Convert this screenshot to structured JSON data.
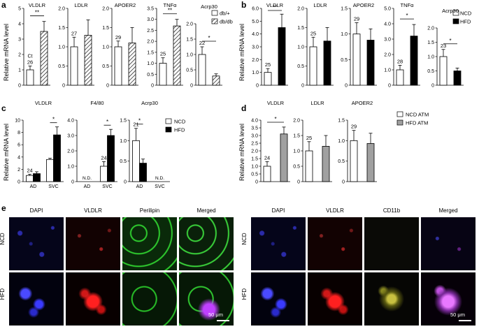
{
  "panels": [
    {
      "letter": "a",
      "ylabel": "Relative mRNA level",
      "legend": [
        "db/+",
        "db/db"
      ]
    },
    {
      "letter": "b",
      "ylabel": "Relative mRNA level",
      "legend": [
        "NCD",
        "HFD"
      ]
    },
    {
      "letter": "c",
      "ylabel": "Relative mRNA level",
      "legend": [
        "NCD",
        "HFD"
      ]
    },
    {
      "letter": "d",
      "ylabel": "Relative mRNA level",
      "legend": [
        "NCD ATM",
        "HFD ATM"
      ]
    },
    {
      "letter": "e"
    }
  ],
  "chart_data": [
    {
      "panel": "a",
      "type": "bar",
      "title": "VLDLR",
      "ylim": [
        0,
        5
      ],
      "yticks": [
        "0",
        "1",
        "2",
        "3",
        "4",
        "5"
      ],
      "categories": [
        "db/+",
        "db/db"
      ],
      "values": [
        1.0,
        3.5
      ],
      "errors": [
        0.25,
        0.65
      ],
      "ct": "26",
      "ct_prefix": "Ct",
      "sig": "**",
      "styles": [
        "open",
        "hatch"
      ]
    },
    {
      "panel": "a",
      "type": "bar",
      "title": "LDLR",
      "ylim": [
        0,
        2.0
      ],
      "yticks": [
        "0",
        "0.5",
        "1.0",
        "1.5",
        "2.0"
      ],
      "categories": [
        "db/+",
        "db/db"
      ],
      "values": [
        1.0,
        1.3
      ],
      "errors": [
        0.25,
        0.4
      ],
      "ct": "27",
      "sig": "",
      "styles": [
        "open",
        "hatch"
      ]
    },
    {
      "panel": "a",
      "type": "bar",
      "title": "APOER2",
      "ylim": [
        0,
        2.0
      ],
      "yticks": [
        "0",
        "0.5",
        "1.0",
        "1.5",
        "2.0"
      ],
      "categories": [
        "db/+",
        "db/db"
      ],
      "values": [
        1.0,
        1.1
      ],
      "errors": [
        0.15,
        0.4
      ],
      "ct": "29",
      "sig": "",
      "styles": [
        "open",
        "hatch"
      ]
    },
    {
      "panel": "a",
      "type": "bar",
      "title": "TNFα",
      "ylim": [
        0,
        3.5
      ],
      "yticks": [
        "0",
        "0.5",
        "1.0",
        "1.5",
        "2.0",
        "2.5",
        "3.0",
        "3.5"
      ],
      "categories": [
        "db/+",
        "db/db"
      ],
      "values": [
        1.0,
        2.7
      ],
      "errors": [
        0.25,
        0.3
      ],
      "ct": "25",
      "sig": "**",
      "styles": [
        "open",
        "hatch"
      ]
    },
    {
      "panel": "a",
      "type": "bar",
      "title": "Acrp30",
      "ylim": [
        0,
        2.0
      ],
      "yticks": [
        "0",
        "0.5",
        "1.0",
        "1.5",
        "2.0"
      ],
      "categories": [
        "db/+",
        "db/db"
      ],
      "values": [
        1.0,
        0.3
      ],
      "errors": [
        0.25,
        0.07
      ],
      "ct": "22",
      "sig": "*",
      "styles": [
        "open",
        "hatch"
      ]
    },
    {
      "panel": "b",
      "type": "bar",
      "title": "VLDLR",
      "ylim": [
        0,
        6.0
      ],
      "yticks": [
        "0",
        "1.0",
        "2.0",
        "3.0",
        "4.0",
        "5.0",
        "6.0"
      ],
      "categories": [
        "NCD",
        "HFD"
      ],
      "values": [
        1.0,
        4.5
      ],
      "errors": [
        0.3,
        1.05
      ],
      "ct": "25",
      "sig": "**",
      "styles": [
        "open",
        "solid"
      ]
    },
    {
      "panel": "b",
      "type": "bar",
      "title": "LDLR",
      "ylim": [
        0,
        2.0
      ],
      "yticks": [
        "0",
        "0.5",
        "1.0",
        "1.5",
        "2.0"
      ],
      "categories": [
        "NCD",
        "HFD"
      ],
      "values": [
        1.0,
        1.15
      ],
      "errors": [
        0.25,
        0.35
      ],
      "ct": "25",
      "sig": "",
      "styles": [
        "open",
        "solid"
      ]
    },
    {
      "panel": "b",
      "type": "bar",
      "title": "APOER2",
      "ylim": [
        0,
        1.5
      ],
      "yticks": [
        "0",
        "0.5",
        "1.0",
        "1.5"
      ],
      "categories": [
        "NCD",
        "HFD"
      ],
      "values": [
        1.0,
        0.88
      ],
      "errors": [
        0.22,
        0.22
      ],
      "ct": "29",
      "sig": "",
      "styles": [
        "open",
        "solid"
      ]
    },
    {
      "panel": "b",
      "type": "bar",
      "title": "TNFα",
      "ylim": [
        0,
        5.0
      ],
      "yticks": [
        "0",
        "1.0",
        "2.0",
        "3.0",
        "4.0",
        "5.0"
      ],
      "categories": [
        "NCD",
        "HFD"
      ],
      "values": [
        1.0,
        3.2
      ],
      "errors": [
        0.3,
        0.75
      ],
      "ct": "28",
      "sig": "*",
      "styles": [
        "open",
        "solid"
      ]
    },
    {
      "panel": "b",
      "type": "bar",
      "title": "Acrp30",
      "ylim": [
        0,
        2.0
      ],
      "yticks": [
        "0",
        "0.5",
        "1.0",
        "1.5",
        "2.0"
      ],
      "categories": [
        "NCD",
        "HFD"
      ],
      "values": [
        1.0,
        0.5
      ],
      "errors": [
        0.25,
        0.1
      ],
      "ct": "23",
      "sig": "*",
      "styles": [
        "open",
        "solid"
      ]
    },
    {
      "panel": "c",
      "type": "bar",
      "title": "VLDLR",
      "ylim": [
        0,
        10
      ],
      "yticks": [
        "0",
        "2",
        "4",
        "6",
        "8",
        "10"
      ],
      "categories": [
        "AD",
        "SVC"
      ],
      "series_names": [
        "NCD",
        "HFD"
      ],
      "groups": [
        [
          1.0,
          1.3
        ],
        [
          3.6,
          7.6
        ]
      ],
      "group_errors": [
        [
          0.2,
          0.3
        ],
        [
          0.2,
          1.3
        ]
      ],
      "ct": "24",
      "sig": "*",
      "nd": [
        "",
        ""
      ],
      "styles": [
        "open",
        "solid"
      ]
    },
    {
      "panel": "c",
      "type": "bar",
      "title": "F4/80",
      "ylim": [
        0,
        4.0
      ],
      "yticks": [
        "0",
        "1.0",
        "2.0",
        "3.0",
        "4.0"
      ],
      "categories": [
        "AD",
        "SVC"
      ],
      "series_names": [
        "NCD",
        "HFD"
      ],
      "groups": [
        [
          0,
          0
        ],
        [
          1.0,
          3.0
        ]
      ],
      "group_errors": [
        [
          0,
          0
        ],
        [
          0.3,
          0.4
        ]
      ],
      "ct": "24",
      "sig": "*",
      "nd": [
        "N.D.",
        ""
      ],
      "styles": [
        "open",
        "solid"
      ]
    },
    {
      "panel": "c",
      "type": "bar",
      "title": "Acrp30",
      "ylim": [
        0,
        1.5
      ],
      "yticks": [
        "0",
        "0.5",
        "1.0",
        "1.5"
      ],
      "categories": [
        "AD",
        "SVC"
      ],
      "series_names": [
        "NCD",
        "HFD"
      ],
      "groups": [
        [
          1.0,
          0.45
        ],
        [
          0,
          0
        ]
      ],
      "group_errors": [
        [
          0.3,
          0.1
        ],
        [
          0,
          0
        ]
      ],
      "ct": "21",
      "sig": "*",
      "nd": [
        "",
        "N.D."
      ],
      "styles": [
        "open",
        "solid"
      ]
    },
    {
      "panel": "d",
      "type": "bar",
      "title": "VLDLR",
      "ylim": [
        0,
        4.0
      ],
      "yticks": [
        "0",
        "0.5",
        "1.0",
        "1.5",
        "2.0",
        "2.5",
        "3.0",
        "3.5",
        "4.0"
      ],
      "categories": [
        "NCD ATM",
        "HFD ATM"
      ],
      "values": [
        1.0,
        3.1
      ],
      "errors": [
        0.3,
        0.45
      ],
      "ct": "24",
      "sig": "*",
      "styles": [
        "open",
        "gray"
      ]
    },
    {
      "panel": "d",
      "type": "bar",
      "title": "LDLR",
      "ylim": [
        0,
        2.0
      ],
      "yticks": [
        "0",
        "0.5",
        "1.0",
        "1.5",
        "2.0"
      ],
      "categories": [
        "NCD ATM",
        "HFD ATM"
      ],
      "values": [
        1.0,
        1.15
      ],
      "errors": [
        0.3,
        0.35
      ],
      "ct": "25",
      "sig": "",
      "styles": [
        "open",
        "gray"
      ]
    },
    {
      "panel": "d",
      "type": "bar",
      "title": "APOER2",
      "ylim": [
        0,
        1.5
      ],
      "yticks": [
        "0",
        "0.5",
        "1.0",
        "1.5"
      ],
      "categories": [
        "NCD ATM",
        "HFD ATM"
      ],
      "values": [
        1.0,
        0.93
      ],
      "errors": [
        0.25,
        0.25
      ],
      "ct": "29",
      "sig": "",
      "styles": [
        "open",
        "gray"
      ]
    }
  ],
  "micrographs": {
    "left": {
      "columns": [
        "DAPI",
        "VLDLR",
        "Perilipin",
        "Merged"
      ],
      "rows": [
        "NCD",
        "HFD"
      ],
      "scale_bar": "50 μm"
    },
    "right": {
      "columns": [
        "DAPI",
        "VLDLR",
        "CD11b",
        "Merged"
      ],
      "rows": [
        "NCD",
        "HFD"
      ],
      "scale_bar": "50 μm"
    }
  },
  "colors": {
    "solid": "#000000",
    "gray": "#a0a0a0",
    "open": "#ffffff",
    "panel_bg": "#000000"
  }
}
